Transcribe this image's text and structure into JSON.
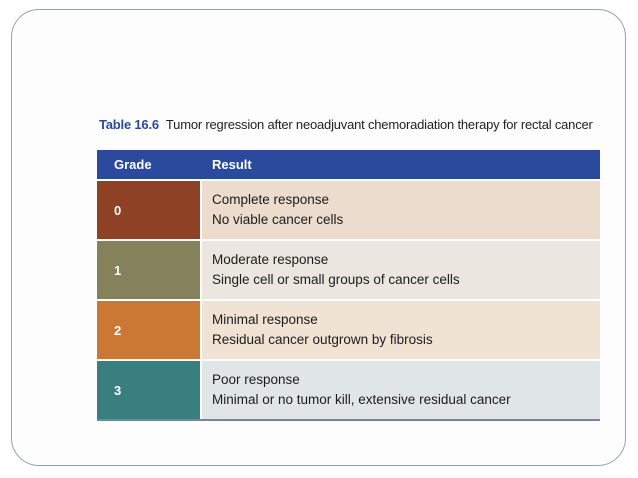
{
  "slide": {
    "title_label": "Table 16.6",
    "title_text": "Tumor regression after neoadjuvant chemoradiation therapy for rectal cancer"
  },
  "table": {
    "headers": {
      "grade": "Grade",
      "result": "Result"
    },
    "rows": [
      {
        "grade": "0",
        "result_line1": "Complete response",
        "result_line2": "No viable cancer cells",
        "grade_bg": "#8e4124",
        "result_bg": "#ecdccd"
      },
      {
        "grade": "1",
        "result_line1": "Moderate response",
        "result_line2": "Single cell or small groups of cancer cells",
        "grade_bg": "#85815a",
        "result_bg": "#ebe7e0"
      },
      {
        "grade": "2",
        "result_line1": "Minimal response",
        "result_line2": "Residual cancer outgrown by fibrosis",
        "grade_bg": "#cb7835",
        "result_bg": "#f0e3d3"
      },
      {
        "grade": "3",
        "result_line1": "Poor response",
        "result_line2": "Minimal or no tumor kill, extensive residual cancer",
        "grade_bg": "#3a7f80",
        "result_bg": "#e0e6e8"
      }
    ],
    "colors": {
      "header_bg": "#2b4a9d",
      "header_text": "#ffffff",
      "title_label": "#2b4a9d",
      "bottom_rule": "#76849f"
    }
  }
}
